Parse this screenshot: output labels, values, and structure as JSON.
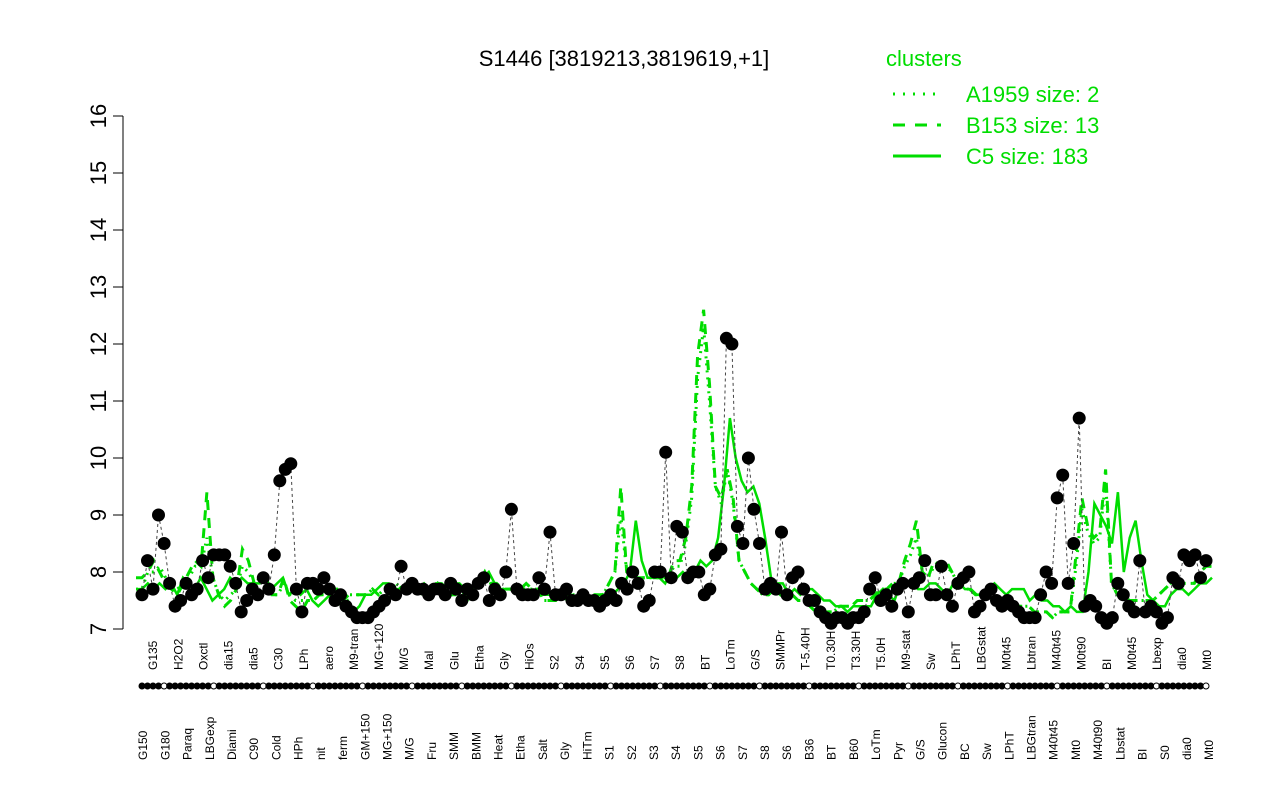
{
  "chart_data": {
    "type": "line",
    "title": "S1446 [3819213,3819619,+1]",
    "xlabel": "",
    "ylabel": "",
    "ylim": [
      7,
      16
    ],
    "yticks": [
      7,
      8,
      9,
      10,
      11,
      12,
      13,
      14,
      15,
      16
    ],
    "grid": false,
    "legend": {
      "title": "clusters",
      "placement": "top-right",
      "entries": [
        {
          "label": "A1959 size: 2",
          "style": "dotted"
        },
        {
          "label": "B153 size: 13",
          "style": "dashed"
        },
        {
          "label": "C5 size: 183",
          "style": "solid"
        }
      ]
    },
    "colors": {
      "series": "#00dd00",
      "points": "#000000",
      "axis": "#000000"
    },
    "x_tick_labels": [
      "G150",
      "G180",
      "Paraq",
      "LBGexp",
      "Diami",
      "C90",
      "Cold",
      "HPh",
      "nit",
      "ferm",
      "GM+150",
      "MG+150",
      "M/G",
      "Fru",
      "SMM",
      "BMM",
      "Heat",
      "Etha",
      "Salt",
      "Gly",
      "HiTm",
      "S1",
      "S2",
      "S3",
      "S4",
      "S5",
      "S6",
      "S7",
      "S8",
      "S6",
      "B36",
      "BT",
      "B60",
      "LoTm",
      "Pyr",
      "G/S",
      "Glucon",
      "BC",
      "Sw",
      "LPhT",
      "LBGtran",
      "M40t45",
      "Mt0",
      "M40t90",
      "Lbstat",
      "BI",
      "S0",
      "dia0",
      "Mt0"
    ],
    "point_labels": [
      "G135",
      "H2O2",
      "Oxctl",
      "dia15",
      "dia5",
      "C30",
      "LPh",
      "aero",
      "M9-tran",
      "MG+120",
      "M/G",
      "Mal",
      "Glu",
      "Etha",
      "Gly",
      "HiOs",
      "S2",
      "S4",
      "S5",
      "S6",
      "S7",
      "S8",
      "BT",
      "LoTm",
      "G/S",
      "SMMPr",
      "T-5.40H",
      "T0.30H",
      "T3.30H",
      "T5.0H",
      "M9-stat",
      "Sw",
      "LPhT",
      "LBGstat",
      "M0t45",
      "Lbtran",
      "M40t45",
      "M0t90",
      "BI",
      "M0t45",
      "Lbexp",
      "dia0",
      "Mt0"
    ],
    "categories_count": 177,
    "series": [
      {
        "name": "C5 size: 183",
        "style": "solid",
        "values": [
          7.7,
          7.7,
          7.8,
          7.7,
          7.8,
          7.7,
          7.8,
          7.6,
          7.9,
          7.8,
          7.7,
          7.9,
          7.7,
          7.5,
          7.6,
          7.7,
          7.9,
          7.8,
          7.9,
          7.8,
          7.8,
          7.8,
          7.9,
          7.7,
          7.8,
          7.9,
          7.6,
          7.7,
          7.6,
          7.7,
          7.5,
          7.4,
          7.5,
          7.6,
          7.5,
          7.4,
          7.5,
          7.3,
          7.4,
          7.6,
          7.6,
          7.7,
          7.8,
          7.8,
          7.7,
          7.7,
          7.8,
          7.8,
          7.7,
          7.8,
          7.7,
          7.8,
          7.8,
          7.7,
          7.8,
          7.8,
          7.7,
          7.6,
          7.8,
          7.9,
          8.0,
          7.8,
          7.7,
          7.7,
          7.7,
          7.6,
          7.7,
          7.6,
          7.7,
          7.6,
          7.6,
          7.6,
          7.6,
          7.6,
          7.6,
          7.5,
          7.6,
          7.5,
          7.6,
          7.6,
          7.6,
          7.6,
          7.7,
          7.8,
          8.0,
          8.9,
          8.2,
          7.9,
          7.9,
          7.9,
          7.8,
          8.0,
          7.9,
          8.0,
          7.9,
          8.0,
          8.2,
          8.1,
          8.2,
          8.6,
          9.5,
          10.7,
          10.0,
          9.6,
          9.4,
          9.5,
          9.2,
          8.6,
          7.9,
          7.8,
          7.8,
          7.6,
          7.7,
          7.6,
          7.7,
          7.7,
          7.6,
          7.5,
          7.5,
          7.4,
          7.4,
          7.3,
          7.4,
          7.4,
          7.4,
          7.4,
          7.6,
          7.7,
          7.6,
          7.5,
          7.8,
          7.8,
          7.8,
          7.7,
          7.7,
          7.8,
          7.8,
          7.7,
          7.6,
          7.8,
          7.8,
          7.7,
          7.7,
          7.6,
          7.6,
          7.7,
          7.8,
          7.7,
          7.6,
          7.7,
          7.7,
          7.7,
          7.5,
          7.6,
          7.5,
          7.5,
          7.4,
          7.4,
          7.3,
          7.4,
          7.3,
          7.3,
          8.0,
          9.2,
          9.0,
          8.8,
          8.5,
          9.4,
          8.0,
          8.6,
          8.9,
          8.2,
          7.6,
          7.5,
          7.4,
          7.4,
          7.6,
          7.7,
          7.7,
          7.6,
          7.7,
          7.8,
          7.8,
          7.9
        ]
      },
      {
        "name": "B153 size: 13",
        "style": "dashed",
        "values": [
          7.9,
          7.9,
          8.0,
          8.2,
          8.0,
          7.8,
          7.7,
          7.6,
          7.8,
          8.0,
          8.2,
          8.1,
          9.4,
          7.9,
          7.6,
          7.4,
          7.5,
          7.7,
          8.4,
          8.2,
          7.8,
          7.9,
          7.9,
          7.6,
          7.6,
          7.9,
          7.5,
          7.4,
          7.3,
          7.5,
          7.5,
          7.6,
          7.6,
          7.7,
          7.7,
          7.5,
          7.6,
          7.6,
          7.6,
          7.6,
          7.7,
          7.6,
          7.7,
          7.7,
          7.8,
          7.7,
          7.7,
          7.8,
          7.6,
          7.7,
          7.7,
          7.8,
          7.6,
          7.6,
          7.6,
          7.7,
          7.5,
          7.7,
          7.8,
          8.0,
          7.8,
          7.8,
          7.7,
          7.7,
          7.7,
          7.7,
          7.8,
          7.7,
          7.7,
          7.5,
          7.5,
          7.5,
          7.6,
          7.5,
          7.6,
          7.6,
          7.6,
          7.6,
          7.6,
          7.6,
          7.8,
          8.0,
          9.5,
          8.0,
          7.9,
          7.9,
          7.9,
          7.9,
          7.9,
          7.9,
          7.9,
          8.2,
          8.2,
          8.6,
          9.5,
          11.8,
          12.6,
          11.3,
          9.5,
          9.3,
          9.8,
          9.3,
          8.2,
          8.0,
          7.8,
          7.7,
          7.6,
          7.6,
          7.7,
          7.6,
          7.7,
          7.6,
          7.5,
          7.5,
          7.4,
          7.3,
          7.3,
          7.3,
          7.3,
          7.4,
          7.4,
          7.4,
          7.5,
          7.5,
          7.5,
          7.6,
          7.7,
          7.7,
          7.8,
          7.8,
          8.2,
          8.5,
          8.9,
          8.0,
          7.9,
          8.2,
          8.1,
          8.2,
          8.0,
          7.8,
          7.7,
          7.7,
          7.6,
          7.6,
          7.6,
          7.5,
          7.4,
          7.5,
          7.4,
          7.4,
          7.4,
          7.4,
          7.3,
          7.3,
          7.3,
          7.2,
          7.3,
          7.3,
          7.3,
          8.3,
          9.3,
          8.8,
          8.6,
          8.7,
          9.8,
          7.8,
          7.6,
          7.6,
          7.5,
          7.5,
          7.5,
          7.5,
          7.5,
          7.6,
          7.7,
          7.8,
          7.8,
          7.8,
          7.8,
          7.8,
          8.0,
          8.1,
          8.1
        ]
      },
      {
        "name": "A1959 size: 2",
        "style": "dotted",
        "values": [
          7.7,
          7.7,
          8.0,
          8.0,
          8.1,
          7.9,
          7.7,
          7.7,
          7.8,
          7.9,
          8.1,
          8.1,
          8.6,
          7.9,
          7.6,
          7.5,
          7.6,
          7.7,
          8.1,
          8.0,
          7.8,
          7.9,
          7.8,
          7.6,
          7.6,
          7.8,
          7.6,
          7.5,
          7.5,
          7.5,
          7.5,
          7.6,
          7.6,
          7.7,
          7.7,
          7.6,
          7.6,
          7.6,
          7.6,
          7.6,
          7.7,
          7.6,
          7.7,
          7.7,
          7.8,
          7.7,
          7.7,
          7.8,
          7.6,
          7.7,
          7.7,
          7.8,
          7.6,
          7.6,
          7.6,
          7.7,
          7.6,
          7.7,
          7.8,
          8.0,
          7.8,
          7.8,
          7.7,
          7.7,
          7.7,
          7.7,
          7.7,
          7.7,
          7.7,
          7.5,
          7.5,
          7.5,
          7.6,
          7.5,
          7.6,
          7.6,
          7.6,
          7.6,
          7.6,
          7.6,
          7.8,
          8.0,
          9.0,
          8.0,
          7.9,
          7.9,
          7.9,
          7.9,
          7.9,
          7.9,
          7.9,
          8.1,
          8.1,
          8.5,
          9.3,
          11.4,
          12.3,
          11.0,
          9.5,
          9.2,
          9.8,
          9.2,
          8.2,
          8.0,
          7.8,
          7.7,
          7.6,
          7.6,
          7.7,
          7.6,
          7.7,
          7.6,
          7.5,
          7.5,
          7.4,
          7.3,
          7.3,
          7.3,
          7.3,
          7.4,
          7.4,
          7.4,
          7.5,
          7.5,
          7.5,
          7.6,
          7.7,
          7.7,
          7.8,
          7.8,
          8.1,
          8.3,
          8.6,
          8.0,
          7.9,
          8.1,
          8.1,
          8.1,
          8.0,
          7.8,
          7.7,
          7.7,
          7.6,
          7.6,
          7.6,
          7.5,
          7.4,
          7.5,
          7.4,
          7.4,
          7.4,
          7.4,
          7.3,
          7.3,
          7.3,
          7.2,
          7.3,
          7.3,
          7.3,
          8.1,
          9.1,
          8.7,
          8.5,
          8.6,
          9.6,
          7.8,
          7.6,
          7.6,
          7.5,
          7.5,
          7.5,
          7.5,
          7.5,
          7.6,
          7.7,
          7.8,
          7.8,
          7.8,
          7.8,
          7.8,
          8.0,
          8.1,
          8.1
        ]
      }
    ],
    "points": [
      7.6,
      8.2,
      7.7,
      9.0,
      8.5,
      7.8,
      7.4,
      7.5,
      7.8,
      7.6,
      7.7,
      8.2,
      7.9,
      8.3,
      8.3,
      8.3,
      8.1,
      7.8,
      7.3,
      7.5,
      7.7,
      7.6,
      7.9,
      7.7,
      8.3,
      9.6,
      9.8,
      9.9,
      7.7,
      7.3,
      7.8,
      7.8,
      7.7,
      7.9,
      7.7,
      7.5,
      7.6,
      7.4,
      7.3,
      7.2,
      7.2,
      7.2,
      7.3,
      7.4,
      7.5,
      7.7,
      7.6,
      8.1,
      7.7,
      7.8,
      7.7,
      7.7,
      7.6,
      7.7,
      7.7,
      7.6,
      7.8,
      7.7,
      7.5,
      7.7,
      7.6,
      7.8,
      7.9,
      7.5,
      7.7,
      7.6,
      8.0,
      9.1,
      7.7,
      7.6,
      7.6,
      7.6,
      7.9,
      7.7,
      8.7,
      7.6,
      7.6,
      7.7,
      7.5,
      7.5,
      7.6,
      7.5,
      7.5,
      7.4,
      7.5,
      7.6,
      7.5,
      7.8,
      7.7,
      8.0,
      7.8,
      7.4,
      7.5,
      8.0,
      8.0,
      10.1,
      7.9,
      8.8,
      8.7,
      7.9,
      8.0,
      8.0,
      7.6,
      7.7,
      8.3,
      8.4,
      12.1,
      12.0,
      8.8,
      8.5,
      10.0,
      9.1,
      8.5,
      7.7,
      7.8,
      7.7,
      8.7,
      7.6,
      7.9,
      8.0,
      7.7,
      7.5,
      7.5,
      7.3,
      7.2,
      7.1,
      7.2,
      7.2,
      7.1,
      7.2,
      7.2,
      7.3,
      7.7,
      7.9,
      7.5,
      7.6,
      7.4,
      7.7,
      7.8,
      7.3,
      7.8,
      7.9,
      8.2,
      7.6,
      7.6,
      8.1,
      7.6,
      7.4,
      7.8,
      7.9,
      8.0,
      7.3,
      7.4,
      7.6,
      7.7,
      7.5,
      7.4,
      7.5,
      7.4,
      7.3,
      7.2,
      7.2,
      7.2,
      7.6,
      8.0,
      7.8,
      9.3,
      9.7,
      7.8,
      8.5,
      10.7,
      7.4,
      7.5,
      7.4,
      7.2,
      7.1,
      7.2,
      7.8,
      7.6,
      7.4,
      7.3,
      8.2,
      7.3,
      7.4,
      7.3,
      7.1,
      7.2,
      7.9,
      7.8,
      8.3,
      8.2,
      8.3,
      7.9,
      8.2
    ]
  }
}
